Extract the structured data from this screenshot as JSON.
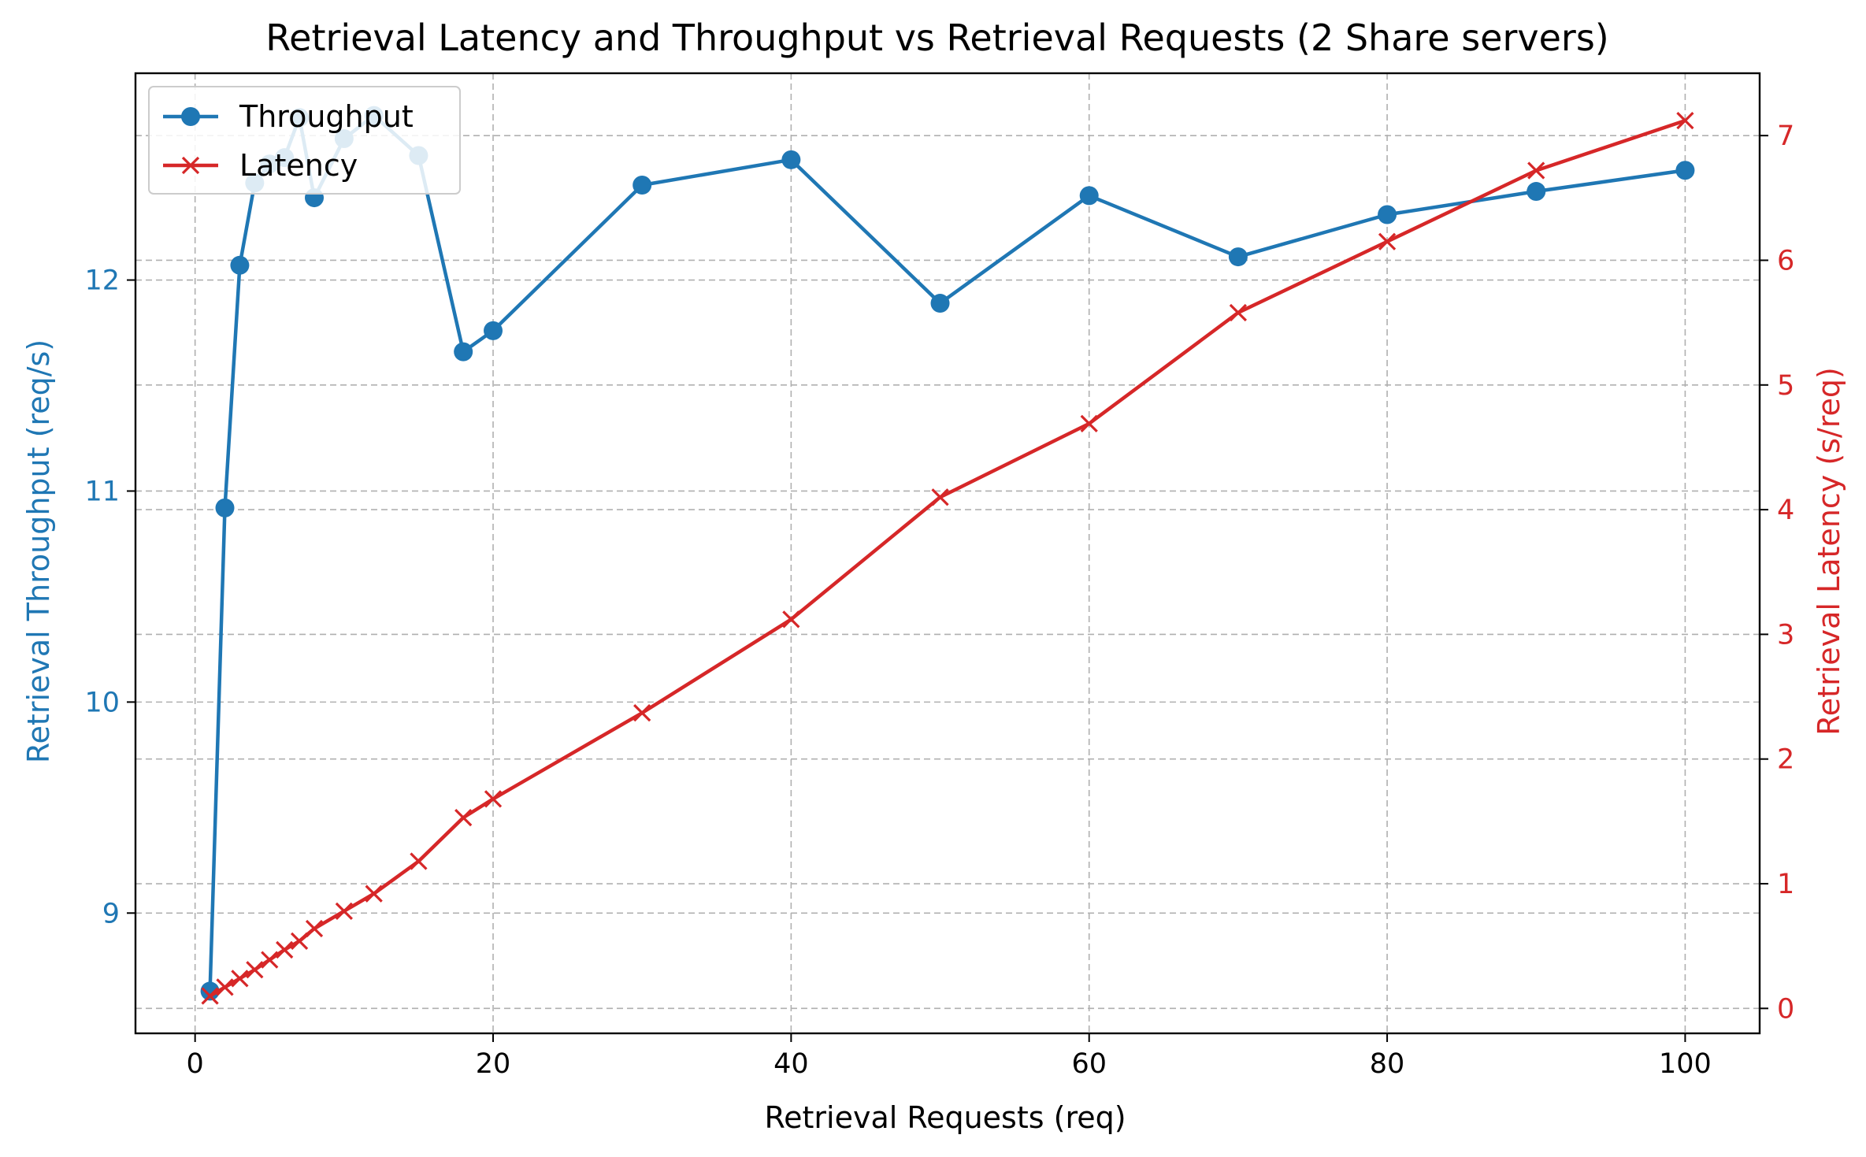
{
  "chart_data": {
    "type": "line",
    "title": "Retrieval Latency and Throughput vs Retrieval Requests (2 Share servers)",
    "xlabel": "Retrieval Requests (req)",
    "ylabel_left": "Retrieval Throughput (req/s)",
    "ylabel_right": "Retrieval Latency (s/req)",
    "xlim": [
      -4,
      105
    ],
    "ylim_left": [
      8.43,
      12.98
    ],
    "ylim_right": [
      -0.2,
      7.5
    ],
    "x_ticks": [
      0,
      20,
      40,
      60,
      80,
      100
    ],
    "y_left_ticks": [
      9,
      10,
      11,
      12
    ],
    "y_right_ticks": [
      0,
      1,
      2,
      3,
      4,
      5,
      6,
      7
    ],
    "grid": true,
    "legend_position": "upper left",
    "colors": {
      "throughput": "#1f77b4",
      "latency": "#d62728",
      "axis": "#000000",
      "grid": "#b0b0b0"
    },
    "x": [
      1,
      2,
      3,
      4,
      5,
      6,
      7,
      8,
      10,
      12,
      15,
      18,
      20,
      30,
      40,
      50,
      60,
      70,
      80,
      90,
      100
    ],
    "series": [
      {
        "name": "Throughput",
        "axis": "left",
        "marker": "circle",
        "color": "#1f77b4",
        "values": [
          8.63,
          10.92,
          12.07,
          12.46,
          12.55,
          12.58,
          12.77,
          12.39,
          12.67,
          12.78,
          12.59,
          11.66,
          11.76,
          12.45,
          12.57,
          11.89,
          12.4,
          12.11,
          12.31,
          12.42,
          12.52
        ]
      },
      {
        "name": "Latency",
        "axis": "right",
        "marker": "x",
        "color": "#d62728",
        "values": [
          0.1,
          0.17,
          0.24,
          0.31,
          0.39,
          0.47,
          0.54,
          0.64,
          0.78,
          0.92,
          1.18,
          1.53,
          1.68,
          2.37,
          3.12,
          4.1,
          4.69,
          5.58,
          6.15,
          6.72,
          7.12
        ]
      }
    ]
  }
}
